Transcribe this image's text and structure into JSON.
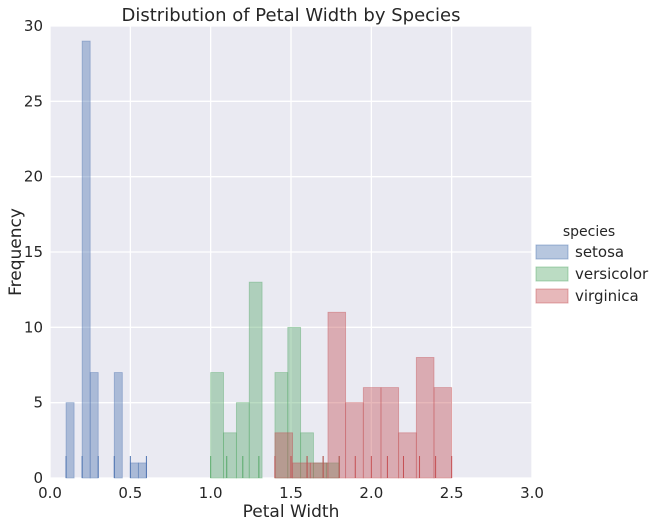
{
  "chart_data": {
    "type": "bar",
    "title": "Distribution of Petal Width by Species",
    "xlabel": "Petal Width",
    "ylabel": "Frequency",
    "xlim": [
      0,
      3
    ],
    "ylim": [
      0,
      30
    ],
    "xticks": [
      "0.0",
      "0.5",
      "1.0",
      "1.5",
      "2.0",
      "2.5",
      "3.0"
    ],
    "yticks": [
      "0",
      "5",
      "10",
      "15",
      "20",
      "25",
      "30"
    ],
    "grid": true,
    "legend": {
      "title": "species",
      "placement": "right"
    },
    "colors": {
      "setosa": "#4c72b0",
      "versicolor": "#55a868",
      "virginica": "#c44e52",
      "background": "#eaeaf2",
      "grid": "#ffffff"
    },
    "series": [
      {
        "name": "setosa",
        "bins": [
          [
            0.1,
            0.15,
            5
          ],
          [
            0.15,
            0.2,
            0
          ],
          [
            0.2,
            0.25,
            29
          ],
          [
            0.25,
            0.3,
            7
          ],
          [
            0.3,
            0.35,
            0
          ],
          [
            0.35,
            0.4,
            0
          ],
          [
            0.4,
            0.45,
            7
          ],
          [
            0.45,
            0.5,
            0
          ],
          [
            0.5,
            0.55,
            1
          ],
          [
            0.55,
            0.6,
            1
          ]
        ],
        "rug": [
          0.1,
          0.2,
          0.3,
          0.4,
          0.5,
          0.6
        ]
      },
      {
        "name": "versicolor",
        "bins": [
          [
            1.0,
            1.08,
            7
          ],
          [
            1.08,
            1.16,
            3
          ],
          [
            1.16,
            1.24,
            5
          ],
          [
            1.24,
            1.32,
            13
          ],
          [
            1.32,
            1.4,
            0
          ],
          [
            1.4,
            1.48,
            7
          ],
          [
            1.48,
            1.56,
            10
          ],
          [
            1.56,
            1.64,
            3
          ],
          [
            1.64,
            1.72,
            1
          ],
          [
            1.72,
            1.8,
            1
          ]
        ],
        "rug": [
          1.0,
          1.1,
          1.2,
          1.3,
          1.4,
          1.5,
          1.6,
          1.7,
          1.8
        ]
      },
      {
        "name": "virginica",
        "bins": [
          [
            1.4,
            1.51,
            3
          ],
          [
            1.51,
            1.62,
            1
          ],
          [
            1.62,
            1.73,
            1
          ],
          [
            1.73,
            1.84,
            11
          ],
          [
            1.84,
            1.95,
            5
          ],
          [
            1.95,
            2.06,
            6
          ],
          [
            2.06,
            2.17,
            6
          ],
          [
            2.17,
            2.28,
            3
          ],
          [
            2.28,
            2.39,
            8
          ],
          [
            2.39,
            2.5,
            6
          ]
        ],
        "rug": [
          1.4,
          1.5,
          1.6,
          1.7,
          1.8,
          1.9,
          2.0,
          2.1,
          2.2,
          2.3,
          2.4,
          2.5
        ]
      }
    ]
  }
}
